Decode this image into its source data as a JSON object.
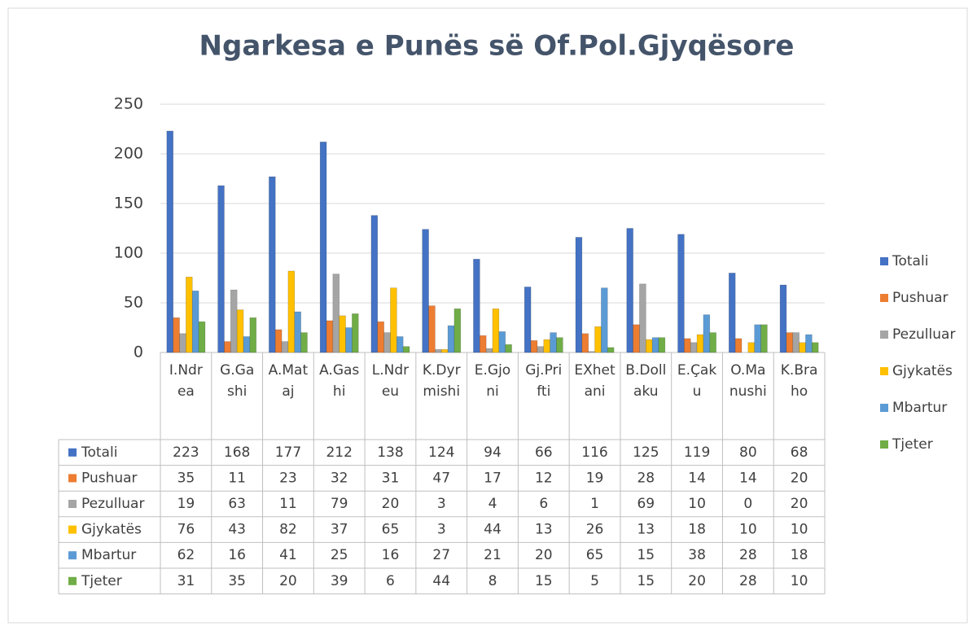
{
  "chart_data": {
    "type": "bar",
    "title": "Ngarkesa e Punës së Of.Pol.Gjyqësore",
    "categories": [
      "I.Ndrea",
      "G.Gashi",
      "A.Mataj",
      "A.Gashi",
      "L.Ndreu",
      "K.Dyrmishi",
      "E.Gjoni",
      "Gj.Prifti",
      "EXhetani",
      "B.Dollaku",
      "E.Çaku",
      "O.Manushi",
      "K.Braho"
    ],
    "series": [
      {
        "name": "Totali",
        "color": "#4472c4",
        "values": [
          223,
          168,
          177,
          212,
          138,
          124,
          94,
          66,
          116,
          125,
          119,
          80,
          68
        ]
      },
      {
        "name": "Pushuar",
        "color": "#ed7d31",
        "values": [
          35,
          11,
          23,
          32,
          31,
          47,
          17,
          12,
          19,
          28,
          14,
          14,
          20
        ]
      },
      {
        "name": "Pezulluar",
        "color": "#a5a5a5",
        "values": [
          19,
          63,
          11,
          79,
          20,
          3,
          4,
          6,
          1,
          69,
          10,
          0,
          20
        ]
      },
      {
        "name": "Gjykatës",
        "color": "#ffc000",
        "values": [
          76,
          43,
          82,
          37,
          65,
          3,
          44,
          13,
          26,
          13,
          18,
          10,
          10
        ]
      },
      {
        "name": "Mbartur",
        "color": "#5b9bd5",
        "values": [
          62,
          16,
          41,
          25,
          16,
          27,
          21,
          20,
          65,
          15,
          38,
          28,
          18
        ]
      },
      {
        "name": "Tjeter",
        "color": "#70ad47",
        "values": [
          31,
          35,
          20,
          39,
          6,
          44,
          8,
          15,
          5,
          15,
          20,
          28,
          10
        ]
      }
    ],
    "ylim": [
      0,
      250
    ],
    "yticks": [
      0,
      50,
      100,
      150,
      200,
      250
    ],
    "grid": true,
    "legend": "right"
  }
}
